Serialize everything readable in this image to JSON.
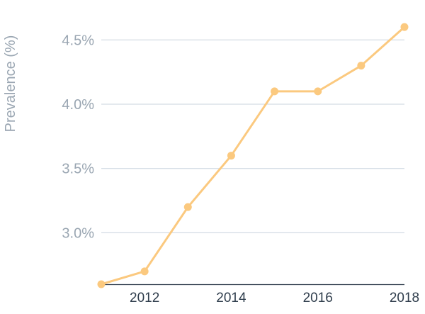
{
  "chart_data": {
    "type": "line",
    "title": "",
    "xlabel": "",
    "ylabel": "Prevalence (%)",
    "xlim": [
      2011,
      2018
    ],
    "ylim": [
      2.6,
      4.7
    ],
    "x_ticks": [
      2012,
      2014,
      2016,
      2018
    ],
    "x_tick_labels": [
      "2012",
      "2014",
      "2016",
      "2018"
    ],
    "y_ticks": [
      3.0,
      3.5,
      4.0,
      4.5
    ],
    "y_tick_labels": [
      "3.0%",
      "3.5%",
      "4.0%",
      "4.5%"
    ],
    "grid": "horizontal",
    "legend": "none",
    "series": [
      {
        "color": "#fbc97f",
        "x": [
          2011,
          2012,
          2013,
          2014,
          2015,
          2016,
          2017,
          2018
        ],
        "y": [
          2.6,
          2.7,
          3.2,
          3.6,
          4.1,
          4.1,
          4.3,
          4.6
        ]
      }
    ]
  }
}
